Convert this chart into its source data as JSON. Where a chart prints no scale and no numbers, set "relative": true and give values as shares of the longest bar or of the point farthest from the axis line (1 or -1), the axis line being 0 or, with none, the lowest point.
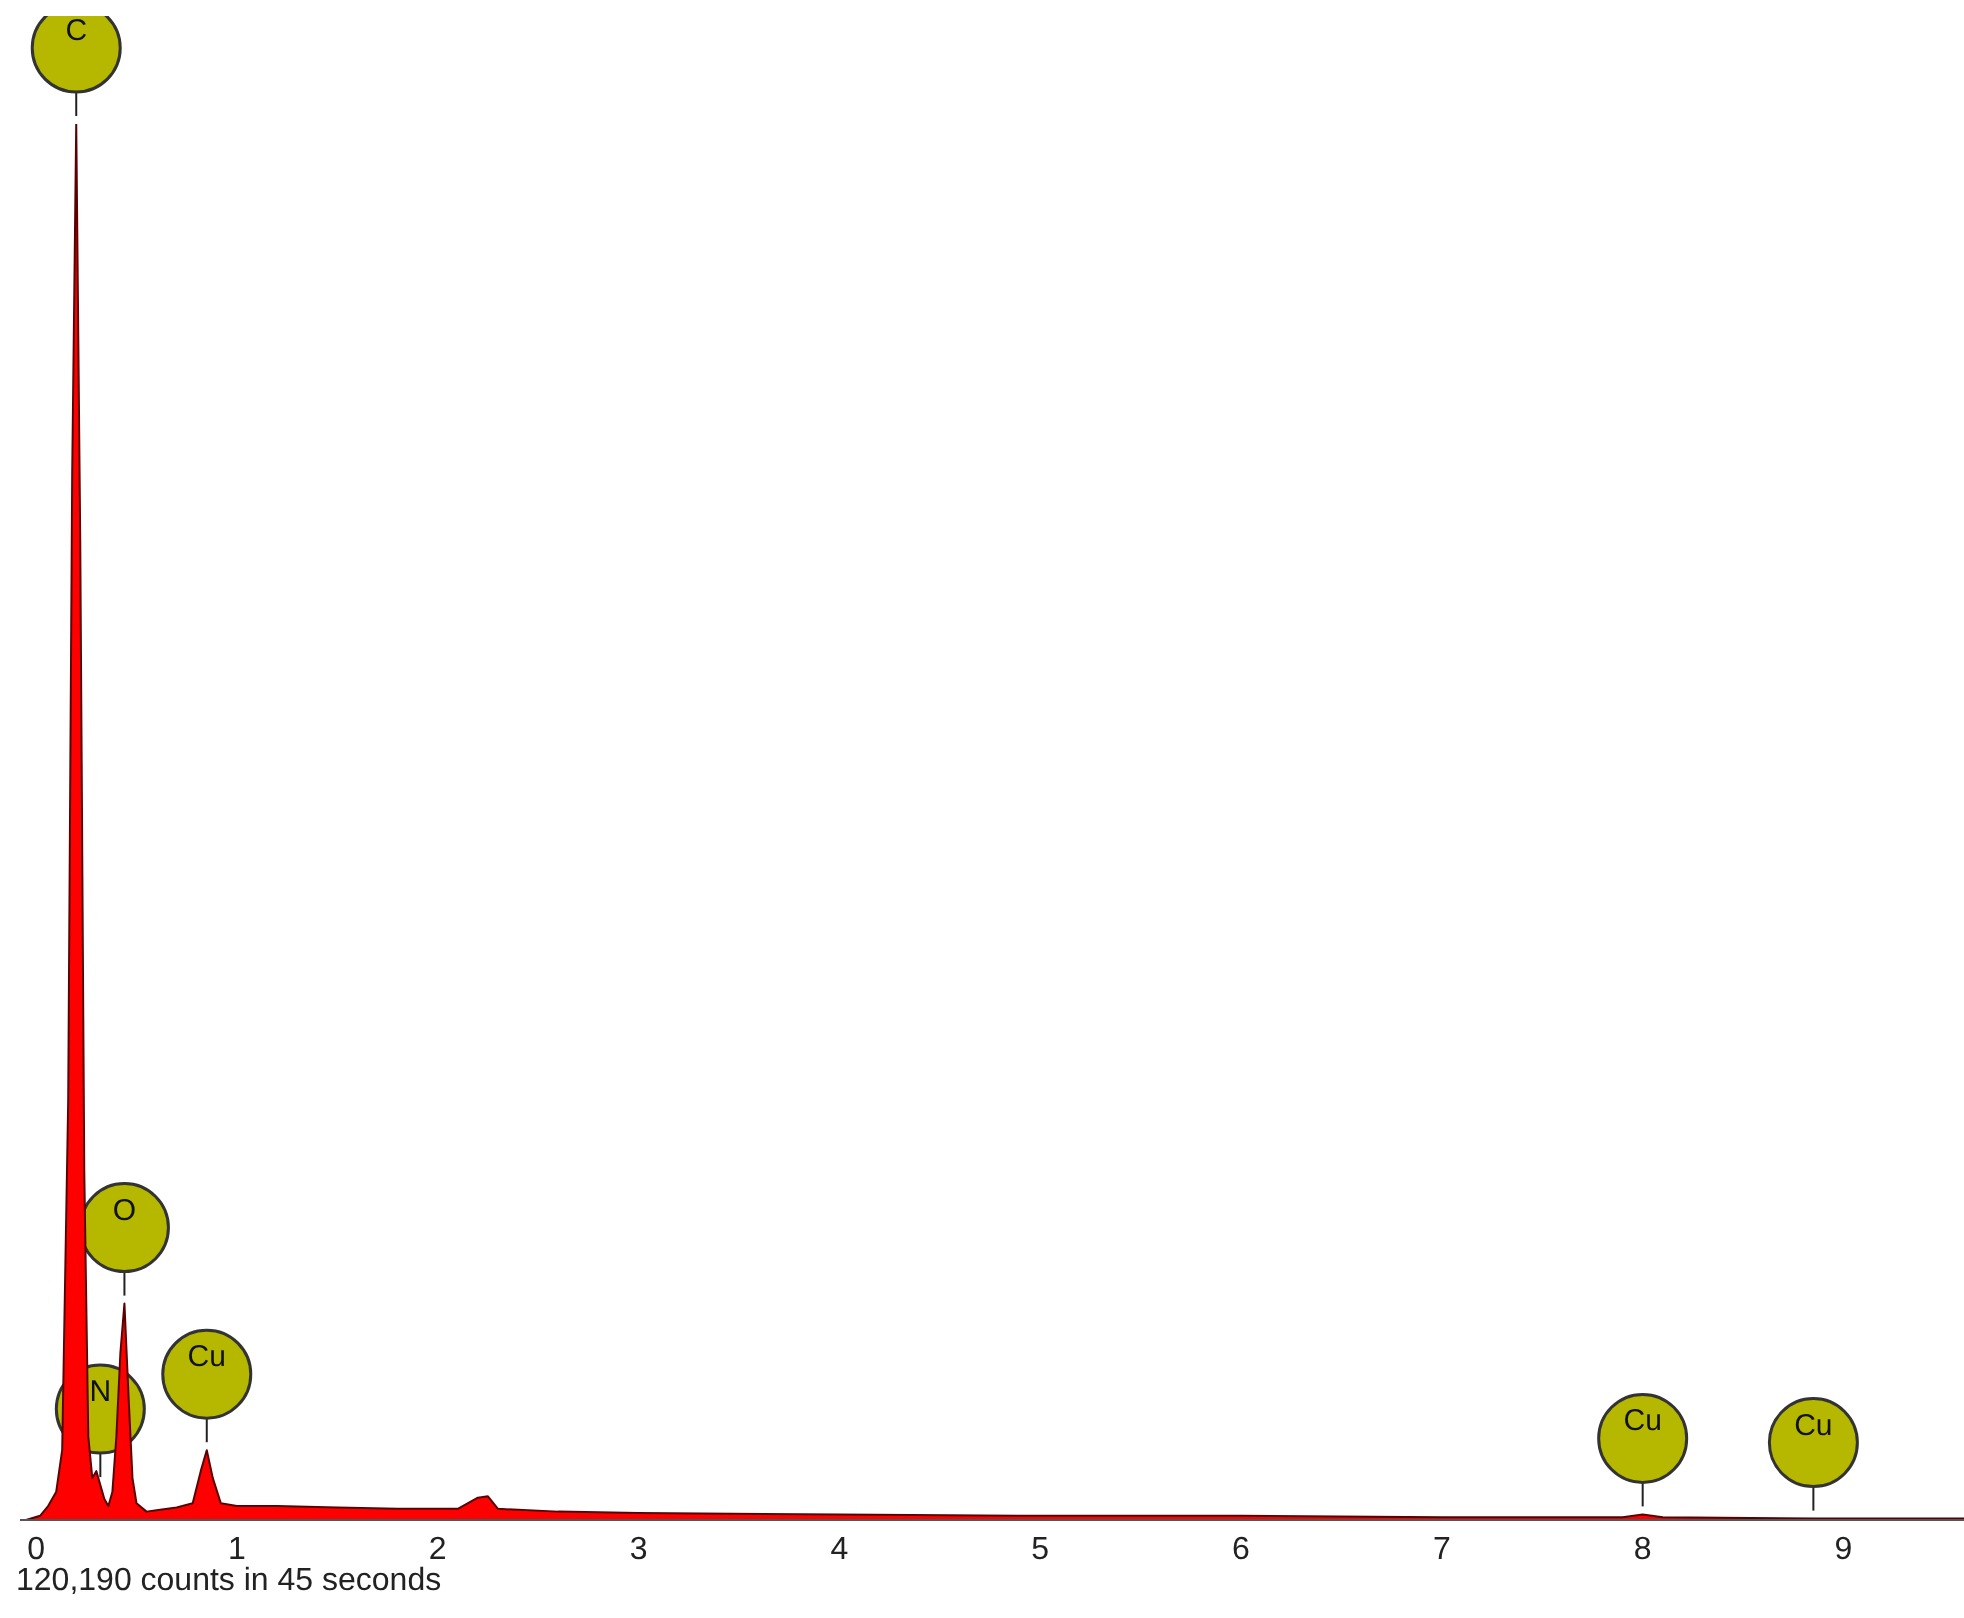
{
  "chart_data": {
    "type": "area",
    "relative": true,
    "xlim": [
      -0.08,
      9.6
    ],
    "xticks": [
      0,
      1,
      2,
      3,
      4,
      5,
      6,
      7,
      8,
      9
    ],
    "grid": false,
    "legend": false,
    "x": [
      -0.05,
      0.02,
      0.06,
      0.1,
      0.13,
      0.16,
      0.18,
      0.2,
      0.22,
      0.24,
      0.26,
      0.28,
      0.3,
      0.32,
      0.34,
      0.36,
      0.38,
      0.4,
      0.42,
      0.44,
      0.46,
      0.48,
      0.5,
      0.55,
      0.6,
      0.7,
      0.78,
      0.82,
      0.85,
      0.88,
      0.92,
      1.0,
      1.2,
      1.5,
      1.8,
      2.1,
      2.2,
      2.25,
      2.3,
      2.6,
      3,
      4,
      5,
      6,
      7,
      7.9,
      8.0,
      8.1,
      8.85,
      9.6
    ],
    "series": [
      {
        "color": "#ff0000",
        "values": [
          0,
          0.003,
          0.01,
          0.02,
          0.05,
          0.3,
          0.75,
          1.0,
          0.7,
          0.25,
          0.06,
          0.03,
          0.035,
          0.025,
          0.015,
          0.01,
          0.02,
          0.06,
          0.12,
          0.155,
          0.09,
          0.03,
          0.012,
          0.006,
          0.007,
          0.009,
          0.012,
          0.035,
          0.05,
          0.03,
          0.012,
          0.01,
          0.01,
          0.009,
          0.008,
          0.008,
          0.016,
          0.017,
          0.008,
          0.006,
          0.005,
          0.004,
          0.003,
          0.003,
          0.002,
          0.002,
          0.004,
          0.002,
          0.001,
          0.001
        ]
      }
    ],
    "annotations": [
      {
        "text": "C",
        "x": 0.2,
        "y": 1.0
      },
      {
        "text": "O",
        "x": 0.44,
        "y": 0.155
      },
      {
        "text": "N",
        "x": 0.32,
        "y": 0.025
      },
      {
        "text": "Cu",
        "x": 0.85,
        "y": 0.05
      },
      {
        "text": "Cu",
        "x": 8.0,
        "y": 0.004
      },
      {
        "text": "Cu",
        "x": 8.85,
        "y": 0.001
      },
      "120,190 counts in 45 seconds"
    ]
  }
}
